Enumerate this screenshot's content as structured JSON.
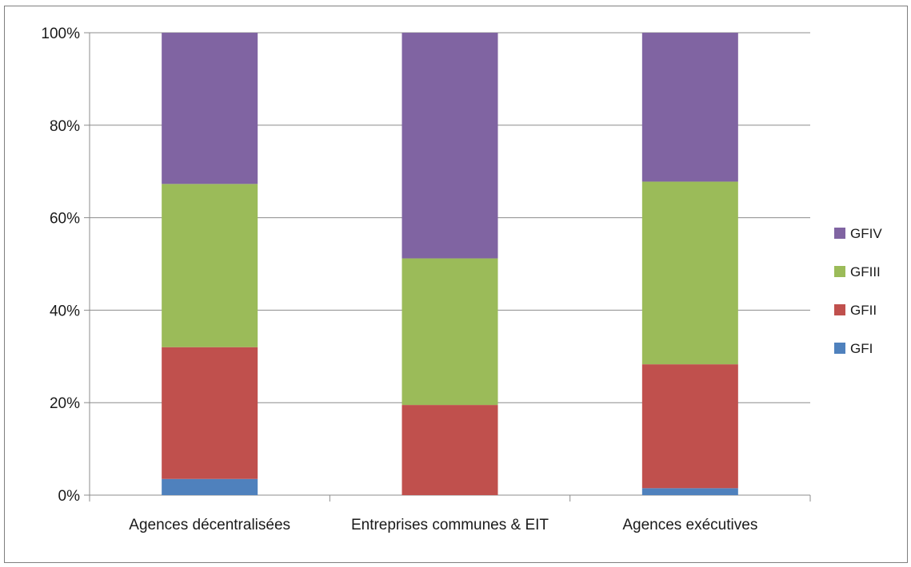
{
  "chart_data": {
    "type": "bar",
    "stacked": true,
    "percent_stacked": true,
    "categories": [
      "Agences décentralisées",
      "Entreprises communes & EIT",
      "Agences exécutives"
    ],
    "series": [
      {
        "name": "GFI",
        "values": [
          3.5,
          0.0,
          1.5
        ]
      },
      {
        "name": "GFII",
        "values": [
          28.5,
          19.5,
          26.8
        ]
      },
      {
        "name": "GFIII",
        "values": [
          35.3,
          31.7,
          39.5
        ]
      },
      {
        "name": "GFIV",
        "values": [
          32.7,
          48.8,
          32.2
        ]
      }
    ],
    "yticks": [
      "0%",
      "20%",
      "40%",
      "60%",
      "80%",
      "100%"
    ],
    "ylim": [
      0,
      100
    ],
    "grid": true,
    "legend": "right",
    "colors": {
      "GFI": "#4f81bd",
      "GFII": "#c0504d",
      "GFIII": "#9bbb59",
      "GFIV": "#8064a2"
    },
    "title": "",
    "xlabel": "",
    "ylabel": ""
  }
}
